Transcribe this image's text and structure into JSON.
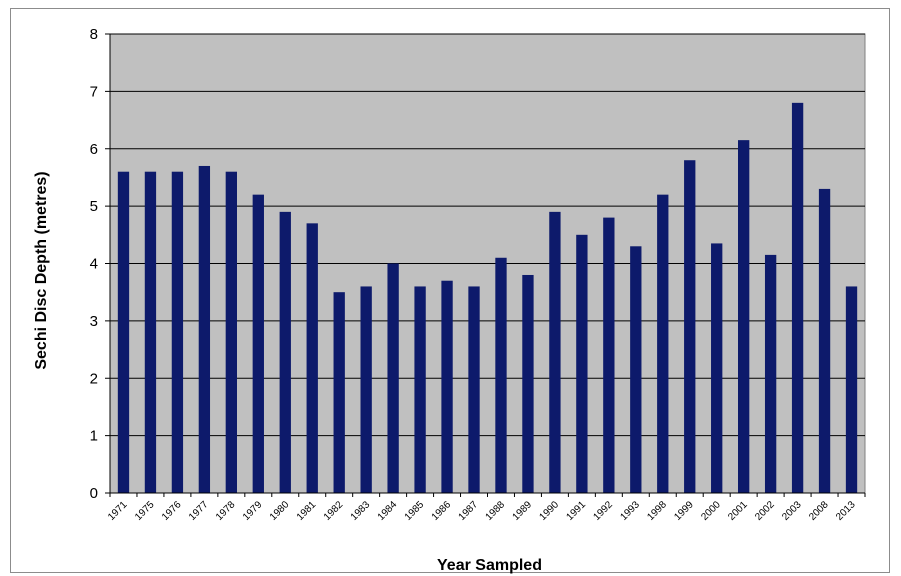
{
  "chart_data": {
    "type": "bar",
    "title": "",
    "xlabel": "Year Sampled",
    "ylabel": "Sechi Disc Depth (metres)",
    "ylim": [
      0,
      8
    ],
    "yticks": [
      0,
      1,
      2,
      3,
      4,
      5,
      6,
      7,
      8
    ],
    "grid": true,
    "legend": "none",
    "categories": [
      "1971",
      "1975",
      "1976",
      "1977",
      "1978",
      "1979",
      "1980",
      "1981",
      "1982",
      "1983",
      "1984",
      "1985",
      "1986",
      "1987",
      "1988",
      "1989",
      "1990",
      "1991",
      "1992",
      "1993",
      "1998",
      "1999",
      "2000",
      "2001",
      "2002",
      "2003",
      "2008",
      "2013"
    ],
    "values": [
      5.6,
      5.6,
      5.6,
      5.7,
      5.6,
      5.2,
      4.9,
      4.7,
      3.5,
      3.6,
      4.0,
      3.6,
      3.7,
      3.6,
      4.1,
      3.8,
      4.9,
      4.5,
      4.8,
      4.3,
      5.2,
      5.8,
      4.35,
      6.15,
      4.15,
      6.8,
      5.3,
      3.6
    ],
    "colors": {
      "bar": "#0d1a6b",
      "plot_background": "#c0c0c0",
      "gridline": "#000000",
      "frame": "#8c8c8c"
    }
  }
}
